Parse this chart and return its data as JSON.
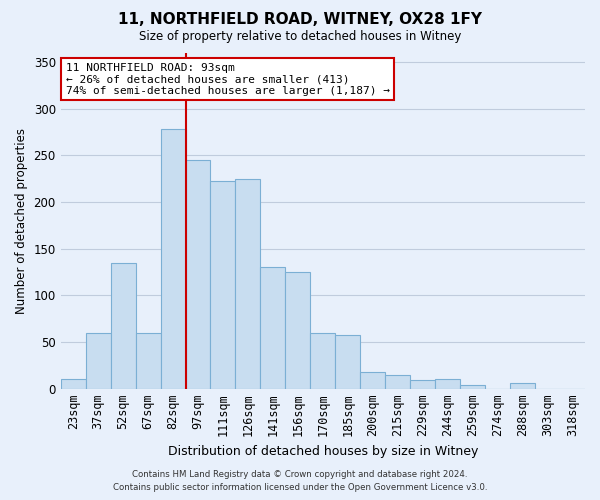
{
  "title": "11, NORTHFIELD ROAD, WITNEY, OX28 1FY",
  "subtitle": "Size of property relative to detached houses in Witney",
  "xlabel": "Distribution of detached houses by size in Witney",
  "ylabel": "Number of detached properties",
  "bar_labels": [
    "23sqm",
    "37sqm",
    "52sqm",
    "67sqm",
    "82sqm",
    "97sqm",
    "111sqm",
    "126sqm",
    "141sqm",
    "156sqm",
    "170sqm",
    "185sqm",
    "200sqm",
    "215sqm",
    "229sqm",
    "244sqm",
    "259sqm",
    "274sqm",
    "288sqm",
    "303sqm",
    "318sqm"
  ],
  "bar_values": [
    10,
    60,
    135,
    60,
    278,
    245,
    222,
    225,
    130,
    125,
    60,
    57,
    18,
    15,
    9,
    10,
    4,
    0,
    6,
    0,
    0
  ],
  "bar_color": "#c8ddf0",
  "bar_edge_color": "#7bafd4",
  "vline_x_index": 4,
  "vline_color": "#cc0000",
  "annotation_text": "11 NORTHFIELD ROAD: 93sqm\n← 26% of detached houses are smaller (413)\n74% of semi-detached houses are larger (1,187) →",
  "annotation_box_color": "white",
  "annotation_box_edge": "#cc0000",
  "ylim": [
    0,
    360
  ],
  "yticks": [
    0,
    50,
    100,
    150,
    200,
    250,
    300,
    350
  ],
  "footer_line1": "Contains HM Land Registry data © Crown copyright and database right 2024.",
  "footer_line2": "Contains public sector information licensed under the Open Government Licence v3.0.",
  "bg_color": "#e8f0fb",
  "grid_color": "#c0ccdd"
}
